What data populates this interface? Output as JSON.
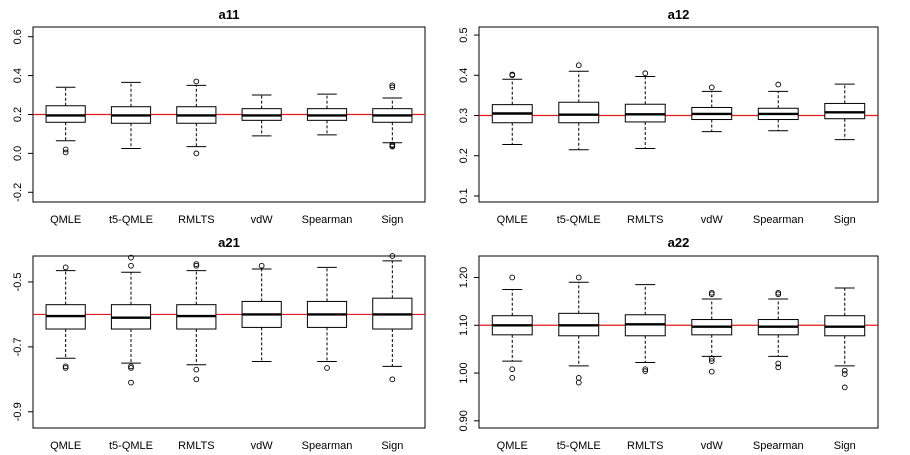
{
  "figure": {
    "type": "boxplot-grid",
    "rows": 2,
    "cols": 2
  },
  "chart_data": [
    {
      "type": "boxplot",
      "title": "a11",
      "categories": [
        "QMLE",
        "t5-QMLE",
        "RMLTS",
        "vdW",
        "Spearman",
        "Sign"
      ],
      "ylim": [
        -0.25,
        0.65
      ],
      "yticks": [
        -0.2,
        0.0,
        0.2,
        0.4,
        0.6
      ],
      "ytick_labels": [
        "-0.2",
        "0.0",
        "0.2",
        "0.4",
        "0.6"
      ],
      "reference_line": 0.2,
      "boxes": [
        {
          "whisker_low": 0.065,
          "q1": 0.16,
          "median": 0.195,
          "q3": 0.245,
          "whisker_high": 0.34,
          "outliers": [
            0.02,
            0.005
          ]
        },
        {
          "whisker_low": 0.025,
          "q1": 0.155,
          "median": 0.195,
          "q3": 0.24,
          "whisker_high": 0.365,
          "outliers": []
        },
        {
          "whisker_low": 0.035,
          "q1": 0.155,
          "median": 0.195,
          "q3": 0.24,
          "whisker_high": 0.35,
          "outliers": [
            0.37,
            0.0
          ]
        },
        {
          "whisker_low": 0.09,
          "q1": 0.17,
          "median": 0.195,
          "q3": 0.23,
          "whisker_high": 0.3,
          "outliers": []
        },
        {
          "whisker_low": 0.095,
          "q1": 0.17,
          "median": 0.195,
          "q3": 0.23,
          "whisker_high": 0.305,
          "outliers": []
        },
        {
          "whisker_low": 0.055,
          "q1": 0.16,
          "median": 0.195,
          "q3": 0.23,
          "whisker_high": 0.285,
          "outliers": [
            0.35,
            0.34,
            0.045,
            0.04,
            0.035
          ]
        }
      ]
    },
    {
      "type": "boxplot",
      "title": "a12",
      "categories": [
        "QMLE",
        "t5-QMLE",
        "RMLTS",
        "vdW",
        "Spearman",
        "Sign"
      ],
      "ylim": [
        0.085,
        0.52
      ],
      "yticks": [
        0.1,
        0.2,
        0.3,
        0.4,
        0.5
      ],
      "ytick_labels": [
        "0.1",
        "0.2",
        "0.3",
        "0.4",
        "0.5"
      ],
      "reference_line": 0.3,
      "boxes": [
        {
          "whisker_low": 0.228,
          "q1": 0.282,
          "median": 0.305,
          "q3": 0.327,
          "whisker_high": 0.39,
          "outliers": [
            0.402,
            0.4
          ]
        },
        {
          "whisker_low": 0.215,
          "q1": 0.282,
          "median": 0.302,
          "q3": 0.333,
          "whisker_high": 0.41,
          "outliers": [
            0.425
          ]
        },
        {
          "whisker_low": 0.218,
          "q1": 0.284,
          "median": 0.303,
          "q3": 0.328,
          "whisker_high": 0.397,
          "outliers": [
            0.405
          ]
        },
        {
          "whisker_low": 0.26,
          "q1": 0.29,
          "median": 0.304,
          "q3": 0.32,
          "whisker_high": 0.36,
          "outliers": [
            0.37
          ]
        },
        {
          "whisker_low": 0.262,
          "q1": 0.29,
          "median": 0.304,
          "q3": 0.318,
          "whisker_high": 0.36,
          "outliers": [
            0.377
          ]
        },
        {
          "whisker_low": 0.24,
          "q1": 0.292,
          "median": 0.308,
          "q3": 0.33,
          "whisker_high": 0.378,
          "outliers": []
        }
      ]
    },
    {
      "type": "boxplot",
      "title": "a21",
      "categories": [
        "QMLE",
        "t5-QMLE",
        "RMLTS",
        "vdW",
        "Spearman",
        "Sign"
      ],
      "ylim": [
        -0.95,
        -0.42
      ],
      "yticks": [
        -0.9,
        -0.7,
        -0.5
      ],
      "ytick_labels": [
        "-0.9",
        "-0.7",
        "-0.5"
      ],
      "reference_line": -0.6,
      "boxes": [
        {
          "whisker_low": -0.735,
          "q1": -0.645,
          "median": -0.605,
          "q3": -0.57,
          "whisker_high": -0.465,
          "outliers": [
            -0.455,
            -0.76,
            -0.765
          ]
        },
        {
          "whisker_low": -0.75,
          "q1": -0.645,
          "median": -0.61,
          "q3": -0.57,
          "whisker_high": -0.47,
          "outliers": [
            -0.425,
            -0.45,
            -0.76,
            -0.765,
            -0.81
          ]
        },
        {
          "whisker_low": -0.755,
          "q1": -0.645,
          "median": -0.605,
          "q3": -0.57,
          "whisker_high": -0.465,
          "outliers": [
            -0.445,
            -0.45,
            -0.77,
            -0.8
          ]
        },
        {
          "whisker_low": -0.745,
          "q1": -0.64,
          "median": -0.6,
          "q3": -0.56,
          "whisker_high": -0.46,
          "outliers": [
            -0.45
          ]
        },
        {
          "whisker_low": -0.745,
          "q1": -0.64,
          "median": -0.6,
          "q3": -0.56,
          "whisker_high": -0.455,
          "outliers": [
            -0.765
          ]
        },
        {
          "whisker_low": -0.76,
          "q1": -0.645,
          "median": -0.6,
          "q3": -0.55,
          "whisker_high": -0.435,
          "outliers": [
            -0.42,
            -0.8
          ]
        }
      ]
    },
    {
      "type": "boxplot",
      "title": "a22",
      "categories": [
        "QMLE",
        "t5-QMLE",
        "RMLTS",
        "vdW",
        "Spearman",
        "Sign"
      ],
      "ylim": [
        0.885,
        1.245
      ],
      "yticks": [
        0.9,
        1.0,
        1.1,
        1.2
      ],
      "ytick_labels": [
        "0.90",
        "1.00",
        "1.10",
        "1.20"
      ],
      "reference_line": 1.1,
      "boxes": [
        {
          "whisker_low": 1.025,
          "q1": 1.08,
          "median": 1.1,
          "q3": 1.12,
          "whisker_high": 1.175,
          "outliers": [
            1.2,
            1.008,
            0.99
          ]
        },
        {
          "whisker_low": 1.015,
          "q1": 1.078,
          "median": 1.1,
          "q3": 1.125,
          "whisker_high": 1.19,
          "outliers": [
            1.2,
            0.99,
            0.98
          ]
        },
        {
          "whisker_low": 1.022,
          "q1": 1.078,
          "median": 1.102,
          "q3": 1.122,
          "whisker_high": 1.185,
          "outliers": [
            1.008,
            1.004
          ]
        },
        {
          "whisker_low": 1.035,
          "q1": 1.08,
          "median": 1.097,
          "q3": 1.112,
          "whisker_high": 1.155,
          "outliers": [
            1.168,
            1.165,
            1.03,
            1.025,
            1.003
          ]
        },
        {
          "whisker_low": 1.035,
          "q1": 1.08,
          "median": 1.097,
          "q3": 1.112,
          "whisker_high": 1.155,
          "outliers": [
            1.168,
            1.165,
            1.02,
            1.012
          ]
        },
        {
          "whisker_low": 1.015,
          "q1": 1.078,
          "median": 1.097,
          "q3": 1.12,
          "whisker_high": 1.178,
          "outliers": [
            1.005,
            0.998,
            0.97
          ]
        }
      ]
    }
  ],
  "colors": {
    "reference_line": "#e31a1c",
    "box": "#000000",
    "background": "#ffffff"
  }
}
